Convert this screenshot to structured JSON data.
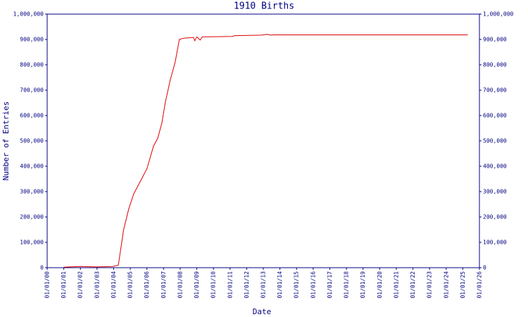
{
  "chart_data": {
    "type": "line",
    "title": "1910 Births",
    "x_label": "Date",
    "y_label": "Number of Entries",
    "x": [
      2001.0,
      2002.0,
      2003.0,
      2003.95,
      2004.28,
      2004.6,
      2004.9,
      2005.2,
      2005.6,
      2006.0,
      2006.4,
      2006.65,
      2006.9,
      2007.1,
      2007.4,
      2007.7,
      2007.95,
      2008.2,
      2008.8,
      2008.88,
      2009.0,
      2009.2,
      2009.33,
      2011.1,
      2011.3,
      2012.9,
      2013.2,
      2013.5,
      2013.6,
      2025.3
    ],
    "series": [
      {
        "name": "Number of Entries",
        "color": "#dd0000",
        "values": [
          2000,
          5000,
          3000,
          5000,
          10000,
          150000,
          230000,
          290000,
          340000,
          390000,
          480000,
          510000,
          570000,
          650000,
          740000,
          810000,
          900000,
          905000,
          908000,
          895000,
          910000,
          898000,
          910000,
          912000,
          915000,
          917000,
          920000,
          917000,
          918000,
          918000
        ]
      }
    ],
    "xlim": [
      2000,
      2026
    ],
    "xticks": [
      {
        "value": 2000,
        "label": "01/01/00"
      },
      {
        "value": 2001,
        "label": "01/01/01"
      },
      {
        "value": 2002,
        "label": "01/01/02"
      },
      {
        "value": 2003,
        "label": "01/01/03"
      },
      {
        "value": 2004,
        "label": "01/01/04"
      },
      {
        "value": 2005,
        "label": "01/01/05"
      },
      {
        "value": 2006,
        "label": "01/01/06"
      },
      {
        "value": 2007,
        "label": "01/01/07"
      },
      {
        "value": 2008,
        "label": "01/01/08"
      },
      {
        "value": 2009,
        "label": "01/01/09"
      },
      {
        "value": 2010,
        "label": "01/01/10"
      },
      {
        "value": 2011,
        "label": "01/01/11"
      },
      {
        "value": 2012,
        "label": "01/01/12"
      },
      {
        "value": 2013,
        "label": "01/01/13"
      },
      {
        "value": 2014,
        "label": "01/01/14"
      },
      {
        "value": 2015,
        "label": "01/01/15"
      },
      {
        "value": 2016,
        "label": "01/01/16"
      },
      {
        "value": 2017,
        "label": "01/01/17"
      },
      {
        "value": 2018,
        "label": "01/01/18"
      },
      {
        "value": 2019,
        "label": "01/01/19"
      },
      {
        "value": 2020,
        "label": "01/01/20"
      },
      {
        "value": 2021,
        "label": "01/01/21"
      },
      {
        "value": 2022,
        "label": "01/01/22"
      },
      {
        "value": 2023,
        "label": "01/01/23"
      },
      {
        "value": 2024,
        "label": "01/01/24"
      },
      {
        "value": 2025,
        "label": "01/01/25"
      },
      {
        "value": 2026,
        "label": "01/01/26"
      }
    ],
    "ylim": [
      0,
      1000000
    ],
    "yticks": [
      0,
      {
        "value": 100000,
        "label": "100,000"
      },
      {
        "value": 200000,
        "label": "200,000"
      },
      {
        "value": 300000,
        "label": "300,000"
      },
      {
        "value": 400000,
        "label": "400,000"
      },
      {
        "value": 500000,
        "label": "500,000"
      },
      {
        "value": 600000,
        "label": "600,000"
      },
      {
        "value": 700000,
        "label": "700,000"
      },
      {
        "value": 800000,
        "label": "800,000"
      },
      {
        "value": 900000,
        "label": "900,000"
      },
      {
        "value": 1000000,
        "label": "1,000,000"
      }
    ],
    "axis_color": "#000080"
  }
}
